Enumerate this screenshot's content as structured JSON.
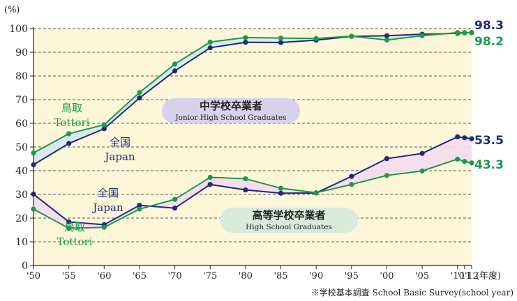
{
  "chart_data": {
    "type": "line",
    "yunit": "(%)",
    "xunit": "(年度)",
    "ylim": [
      0,
      100
    ],
    "yticks": [
      0,
      10,
      20,
      30,
      40,
      50,
      60,
      70,
      80,
      90,
      100
    ],
    "x": [
      1950,
      1955,
      1960,
      1965,
      1970,
      1975,
      1980,
      1985,
      1990,
      1995,
      2000,
      2005,
      2010,
      2011,
      2012
    ],
    "xticklabels": [
      "'50",
      "'55",
      "'60",
      "'65",
      "'70",
      "'75",
      "'80",
      "'85",
      "'90",
      "'95",
      "'00",
      "'05",
      "'10",
      "'11",
      "'12"
    ],
    "grid": "horizontal dashed",
    "source_note": "※学校基本調査 School Basic Survey(school year)",
    "colors": {
      "japan": "#1f2a7a",
      "tottori": "#1a9b49",
      "plot_bg": "#fdf6d8",
      "jh_fill": "#d6e8f1",
      "hs_fill": "#f6dcef",
      "jh_label_bg": "#d7d1ec",
      "hs_label_bg": "#d7ecdc"
    },
    "groups": [
      {
        "key": "jh",
        "label_ja": "中学校卒業者",
        "label_en": "Jonior High School Graduates",
        "series": [
          {
            "key": "japan",
            "name_ja": "全国",
            "name_en": "Japan",
            "values": [
              42.5,
              51.5,
              57.7,
              70.7,
              82.1,
              91.9,
              94.2,
              94.1,
              95.1,
              96.7,
              97.0,
              97.6,
              98.0,
              98.2,
              98.3
            ]
          },
          {
            "key": "tottori",
            "name_ja": "鳥取",
            "name_en": "Tottori",
            "values": [
              47.5,
              55.6,
              59.4,
              73.0,
              85.0,
              94.3,
              96.2,
              96.0,
              95.8,
              96.8,
              95.2,
              97.0,
              98.3,
              98.3,
              98.2
            ]
          }
        ],
        "end_labels": {
          "japan": "98.3",
          "tottori": "98.2"
        }
      },
      {
        "key": "hs",
        "label_ja": "高等学校卒業者",
        "label_en": "High School Graduates",
        "series": [
          {
            "key": "japan",
            "name_ja": "全国",
            "name_en": "Japan",
            "values": [
              30.1,
              18.4,
              17.2,
              25.4,
              24.2,
              34.2,
              31.9,
              30.5,
              30.6,
              37.6,
              45.1,
              47.3,
              54.3,
              53.9,
              53.5
            ]
          },
          {
            "key": "tottori",
            "name_ja": "鳥取",
            "name_en": "Tottori",
            "values": [
              23.8,
              15.7,
              16.1,
              23.8,
              27.9,
              37.2,
              36.6,
              32.6,
              30.7,
              34.2,
              38.0,
              39.9,
              44.9,
              43.9,
              43.3
            ]
          }
        ],
        "end_labels": {
          "japan": "53.5",
          "tottori": "43.3"
        }
      }
    ]
  }
}
